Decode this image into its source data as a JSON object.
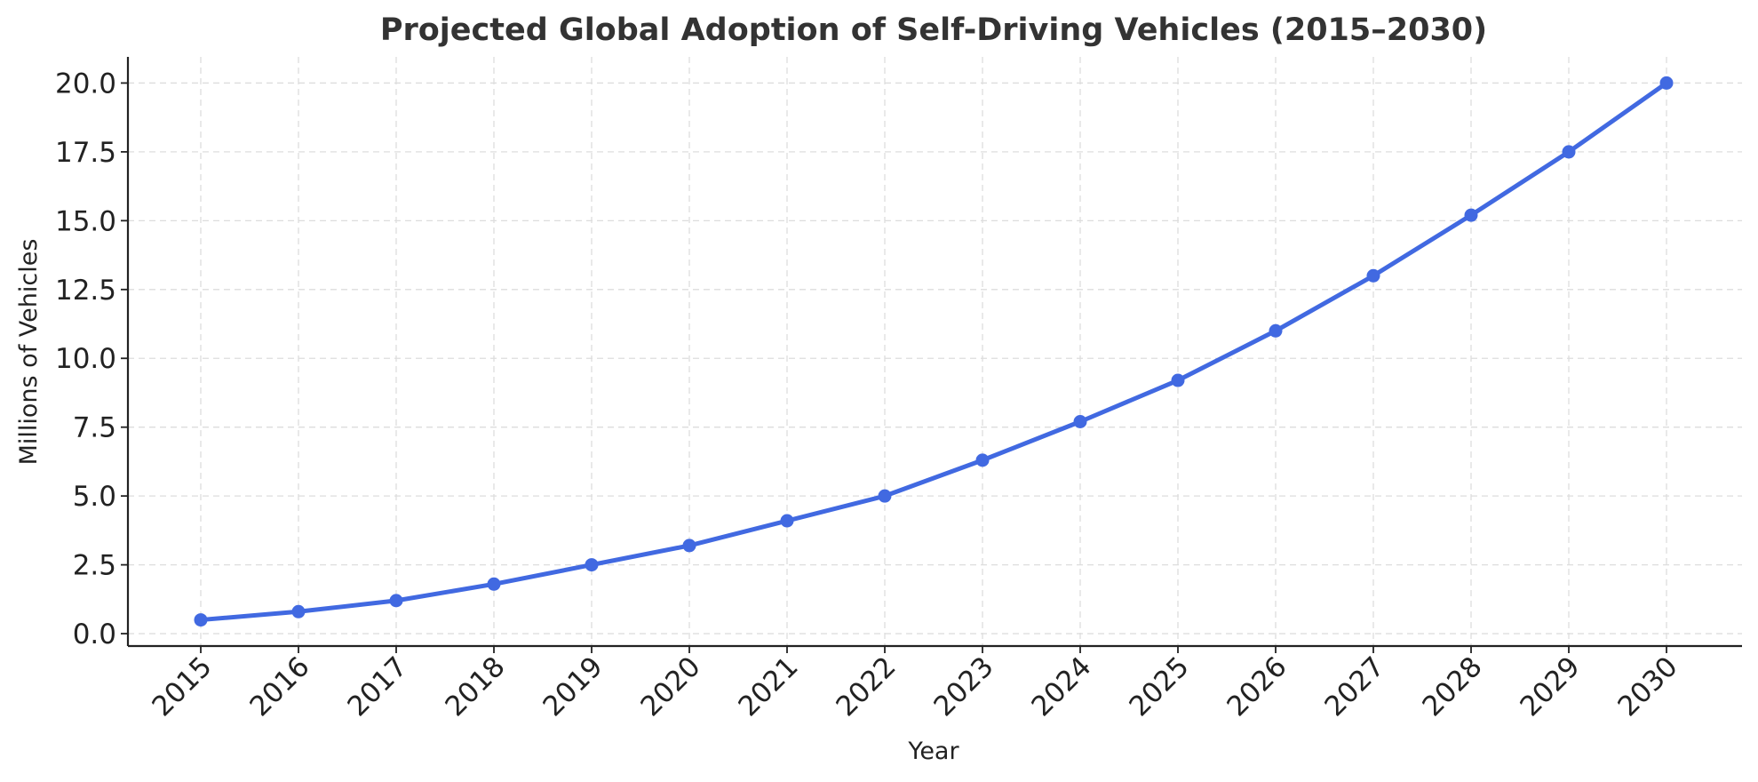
{
  "chart_data": {
    "type": "line",
    "title": "Projected Global Adoption of Self-Driving Vehicles (2015–2030)",
    "xlabel": "Year",
    "ylabel": "Millions of Vehicles",
    "x": [
      "2015",
      "2016",
      "2017",
      "2018",
      "2019",
      "2020",
      "2021",
      "2022",
      "2023",
      "2024",
      "2025",
      "2026",
      "2027",
      "2028",
      "2029",
      "2030"
    ],
    "series": [
      {
        "values": [
          0.5,
          0.8,
          1.2,
          1.8,
          2.5,
          3.2,
          4.1,
          5.0,
          6.3,
          7.7,
          9.2,
          11.0,
          13.0,
          15.2,
          17.5,
          20.0
        ],
        "color": "#4169e1",
        "marker": "circle"
      }
    ],
    "yticks": [
      "0.0",
      "2.5",
      "5.0",
      "7.5",
      "10.0",
      "12.5",
      "15.0",
      "17.5",
      "20.0"
    ],
    "ylim": [
      -0.45,
      20.95
    ],
    "grid": true,
    "legend": "none"
  }
}
